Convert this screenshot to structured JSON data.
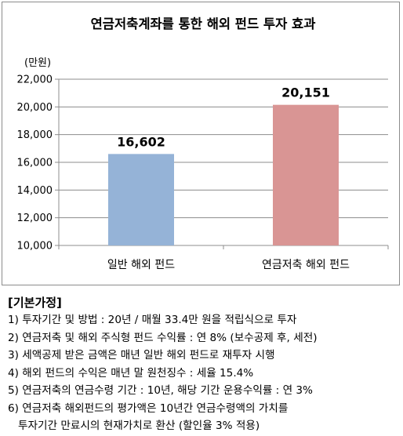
{
  "chart_data": {
    "type": "bar",
    "title": "연금저축계좌를 통한 해외 펀드 투자 효과",
    "unit_label": "(만원)",
    "categories": [
      "일반 해외 펀드",
      "연금저축 해외 펀드"
    ],
    "values": [
      16602,
      20151
    ],
    "value_labels": [
      "16,602",
      "20,151"
    ],
    "colors": [
      "#95b3d7",
      "#d99594"
    ],
    "ylim": [
      10000,
      22000
    ],
    "yticks": [
      10000,
      12000,
      14000,
      16000,
      18000,
      20000,
      22000
    ],
    "ytick_labels": [
      "10,000",
      "12,000",
      "14,000",
      "16,000",
      "18,000",
      "20,000",
      "22,000"
    ],
    "grid": true,
    "legend": "none"
  },
  "assumptions": {
    "heading": "[기본가정]",
    "items": [
      "1) 투자기간 및 방법 : 20년 / 매월 33.4만 원을 적립식으로 투자",
      "2) 연금저축 및 해외 주식형 펀드 수익률 : 연 8% (보수공제 후, 세전)",
      "3) 세액공제 받은 금액은 매년 일반 해외 펀드로 재투자 시행",
      "4) 해외 펀드의 수익은 매년 말 원천징수 : 세율 15.4%",
      "5) 연금저축의 연금수령 기간 : 10년,  해당 기간 운용수익률 : 연 3%",
      "6) 연금저축 해외펀드의 평가액은 10년간 연금수령액의 가치를",
      "투자기간 만료시의 현재가치로 환산 (할인율 3% 적용)"
    ]
  }
}
